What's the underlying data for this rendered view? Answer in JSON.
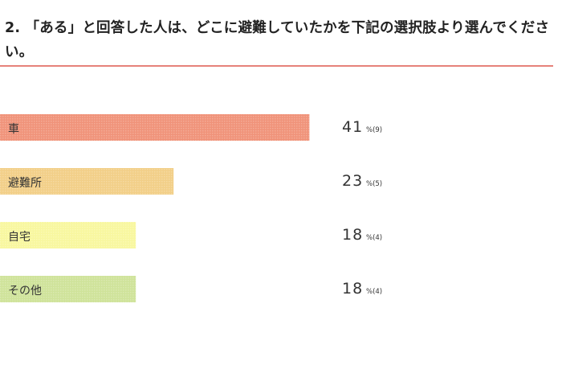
{
  "question": {
    "title": "2. 「ある」と回答した人は、どこに避難していたかを下記の選択肢より選んでください。"
  },
  "chart_data": {
    "type": "bar",
    "orientation": "horizontal",
    "unit": "%",
    "categories": [
      "車",
      "避難所",
      "自宅",
      "その他"
    ],
    "values": [
      41,
      23,
      18,
      18
    ],
    "counts": [
      9,
      5,
      4,
      4
    ],
    "colors": [
      "#f0937a",
      "#f2cf88",
      "#f8f79f",
      "#cfe39a"
    ],
    "xlim": [
      0,
      100
    ]
  }
}
